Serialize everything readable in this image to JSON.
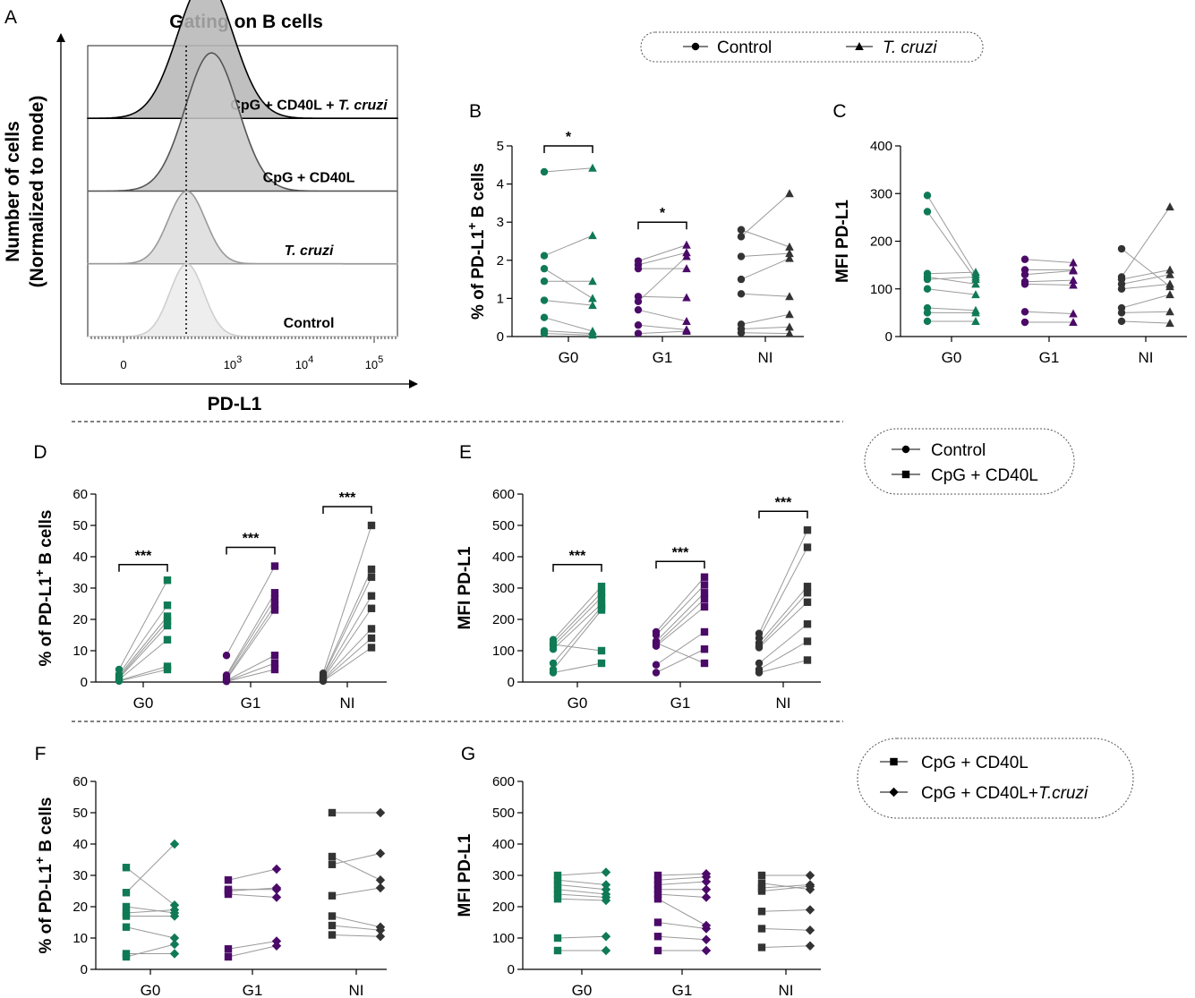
{
  "colors": {
    "G0": "#107a55",
    "G1": "#4b0a68",
    "NI": "#333333",
    "line": "#9a9a9a",
    "axis": "#000000"
  },
  "legends": {
    "top": {
      "items": [
        {
          "label": "Control",
          "marker": "circle"
        },
        {
          "label": "T. cruzi",
          "marker": "triangle",
          "italic": true
        }
      ]
    },
    "mid": {
      "items": [
        {
          "label": "Control",
          "marker": "circle"
        },
        {
          "label": "CpG + CD40L",
          "marker": "square"
        }
      ]
    },
    "bottom": {
      "items": [
        {
          "label": "CpG + CD40L",
          "marker": "square"
        },
        {
          "label": "CpG + CD40L+",
          "italic_part": "T.cruzi",
          "marker": "diamond"
        }
      ]
    }
  },
  "chart_data": [
    {
      "id": "A",
      "panel_label": "A",
      "type": "histogram",
      "title": "Gating on B cells",
      "xlabel": "PD-L1",
      "ylabel_line1": "Number of cells",
      "ylabel_line2": "(Normalized to mode)",
      "xticks": [
        {
          "base": "0"
        },
        {
          "base": "10",
          "exp": "3"
        },
        {
          "base": "10",
          "exp": "4"
        },
        {
          "base": "10",
          "exp": "5"
        }
      ],
      "tracks": [
        {
          "plain": "CpG + CD40L + ",
          "italic": "T. cruzi",
          "peak": 0.38,
          "width": 0.09
        },
        {
          "plain": "CpG + CD40L",
          "italic": "",
          "peak": 0.4,
          "width": 0.085
        },
        {
          "plain": "",
          "italic": "T. cruzi",
          "peak": 0.32,
          "width": 0.06
        },
        {
          "plain": "Control",
          "italic": "",
          "peak": 0.32,
          "width": 0.055
        }
      ]
    },
    {
      "id": "B",
      "panel_label": "B",
      "type": "paired-scatter",
      "ylabel": "% of PD-L1",
      "ylabel_sup": "+",
      "ylabel_tail": " B cells",
      "ylim": [
        0,
        5
      ],
      "yticks": [
        0,
        1,
        2,
        3,
        4,
        5
      ],
      "categories": [
        "G0",
        "G1",
        "NI"
      ],
      "markers": [
        "circle",
        "triangle"
      ],
      "pairs": {
        "G0": [
          [
            4.32,
            4.42
          ],
          [
            2.12,
            2.65
          ],
          [
            1.78,
            1.0
          ],
          [
            1.45,
            1.45
          ],
          [
            0.95,
            0.82
          ],
          [
            0.5,
            0.14
          ],
          [
            0.15,
            0.08
          ],
          [
            0.08,
            0.04
          ]
        ],
        "G1": [
          [
            1.98,
            2.4
          ],
          [
            1.88,
            2.2
          ],
          [
            1.78,
            1.78
          ],
          [
            1.05,
            1.02
          ],
          [
            0.92,
            2.1
          ],
          [
            0.7,
            0.4
          ],
          [
            0.3,
            0.18
          ],
          [
            0.08,
            0.14
          ]
        ],
        "NI": [
          [
            2.8,
            2.35
          ],
          [
            2.62,
            3.75
          ],
          [
            2.1,
            2.18
          ],
          [
            1.5,
            2.05
          ],
          [
            1.12,
            1.05
          ],
          [
            0.32,
            0.58
          ],
          [
            0.2,
            0.25
          ],
          [
            0.1,
            0.08
          ]
        ]
      },
      "significance": [
        {
          "category": "G0",
          "label": "*",
          "level": 5.0
        },
        {
          "category": "G1",
          "label": "*",
          "level": 3.0
        }
      ]
    },
    {
      "id": "C",
      "panel_label": "C",
      "type": "paired-scatter",
      "ylabel": "MFI PD-L1",
      "ylim": [
        0,
        400
      ],
      "yticks": [
        0,
        100,
        200,
        300,
        400
      ],
      "categories": [
        "G0",
        "G1",
        "NI"
      ],
      "markers": [
        "circle",
        "triangle"
      ],
      "pairs": {
        "G0": [
          [
            296,
            130
          ],
          [
            262,
            120
          ],
          [
            132,
            135
          ],
          [
            125,
            110
          ],
          [
            120,
            125
          ],
          [
            100,
            88
          ],
          [
            60,
            55
          ],
          [
            50,
            50
          ],
          [
            32,
            32
          ]
        ],
        "G1": [
          [
            162,
            155
          ],
          [
            140,
            140
          ],
          [
            130,
            138
          ],
          [
            115,
            118
          ],
          [
            110,
            108
          ],
          [
            52,
            48
          ],
          [
            30,
            30
          ]
        ],
        "NI": [
          [
            184,
            105
          ],
          [
            125,
            272
          ],
          [
            120,
            140
          ],
          [
            110,
            130
          ],
          [
            100,
            110
          ],
          [
            60,
            88
          ],
          [
            50,
            52
          ],
          [
            32,
            28
          ]
        ]
      },
      "significance": []
    },
    {
      "id": "D",
      "panel_label": "D",
      "type": "paired-scatter",
      "ylabel": "% of PD-L1",
      "ylabel_sup": "+",
      "ylabel_tail": " B cells",
      "ylim": [
        0,
        60
      ],
      "yticks": [
        0,
        10,
        20,
        30,
        40,
        50,
        60
      ],
      "categories": [
        "G0",
        "G1",
        "NI"
      ],
      "markers": [
        "circle",
        "square"
      ],
      "pairs": {
        "G0": [
          [
            4.0,
            32.5
          ],
          [
            2.5,
            24.5
          ],
          [
            2.0,
            21.0
          ],
          [
            1.5,
            19.5
          ],
          [
            1.2,
            18.0
          ],
          [
            0.8,
            13.5
          ],
          [
            0.5,
            5.0
          ],
          [
            0.3,
            4.0
          ]
        ],
        "G1": [
          [
            8.5,
            37.0
          ],
          [
            2.2,
            28.5
          ],
          [
            1.8,
            26.5
          ],
          [
            1.2,
            24.5
          ],
          [
            0.8,
            23.0
          ],
          [
            0.5,
            8.5
          ],
          [
            0.3,
            6.0
          ],
          [
            0.2,
            4.0
          ]
        ],
        "NI": [
          [
            2.8,
            50.0
          ],
          [
            2.2,
            36.0
          ],
          [
            1.8,
            33.5
          ],
          [
            1.4,
            27.5
          ],
          [
            1.0,
            23.5
          ],
          [
            0.8,
            17.0
          ],
          [
            0.5,
            14.0
          ],
          [
            0.3,
            11.0
          ]
        ]
      },
      "significance": [
        {
          "category": "G0",
          "label": "***",
          "level": 37.5
        },
        {
          "category": "G1",
          "label": "***",
          "level": 43.0
        },
        {
          "category": "NI",
          "label": "***",
          "level": 56.0
        }
      ]
    },
    {
      "id": "E",
      "panel_label": "E",
      "type": "paired-scatter",
      "ylabel": "MFI PD-L1",
      "ylim": [
        0,
        600
      ],
      "yticks": [
        0,
        100,
        200,
        300,
        400,
        500,
        600
      ],
      "categories": [
        "G0",
        "G1",
        "NI"
      ],
      "markers": [
        "circle",
        "square"
      ],
      "pairs": {
        "G0": [
          [
            135,
            305
          ],
          [
            125,
            285
          ],
          [
            115,
            270
          ],
          [
            105,
            250
          ],
          [
            60,
            240
          ],
          [
            40,
            230
          ],
          [
            120,
            100
          ],
          [
            30,
            60
          ]
        ],
        "G1": [
          [
            160,
            335
          ],
          [
            150,
            310
          ],
          [
            130,
            285
          ],
          [
            120,
            265
          ],
          [
            115,
            240
          ],
          [
            55,
            160
          ],
          [
            30,
            105
          ],
          [
            125,
            60
          ]
        ],
        "NI": [
          [
            155,
            485
          ],
          [
            140,
            430
          ],
          [
            125,
            305
          ],
          [
            115,
            285
          ],
          [
            110,
            255
          ],
          [
            60,
            185
          ],
          [
            40,
            130
          ],
          [
            30,
            70
          ]
        ]
      },
      "significance": [
        {
          "category": "G0",
          "label": "***",
          "level": 375
        },
        {
          "category": "G1",
          "label": "***",
          "level": 385
        },
        {
          "category": "NI",
          "label": "***",
          "level": 545
        }
      ]
    },
    {
      "id": "F",
      "panel_label": "F",
      "type": "paired-scatter",
      "ylabel": "% of PD-L1",
      "ylabel_sup": "+",
      "ylabel_tail": " B cells",
      "ylim": [
        0,
        60
      ],
      "yticks": [
        0,
        10,
        20,
        30,
        40,
        50,
        60
      ],
      "categories": [
        "G0",
        "G1",
        "NI"
      ],
      "markers": [
        "square",
        "diamond"
      ],
      "pairs": {
        "G0": [
          [
            32.5,
            20.5
          ],
          [
            24.5,
            40.0
          ],
          [
            20.0,
            18.0
          ],
          [
            18.0,
            19.0
          ],
          [
            17.0,
            17.0
          ],
          [
            13.5,
            10.0
          ],
          [
            5.0,
            5.0
          ],
          [
            4.0,
            8.0
          ]
        ],
        "G1": [
          [
            28.5,
            32.0
          ],
          [
            25.5,
            25.5
          ],
          [
            25.0,
            26.0
          ],
          [
            24.0,
            23.0
          ],
          [
            6.5,
            9.0
          ],
          [
            4.0,
            7.5
          ]
        ],
        "NI": [
          [
            50.0,
            50.0
          ],
          [
            36.0,
            28.5
          ],
          [
            33.5,
            37.0
          ],
          [
            23.5,
            26.0
          ],
          [
            17.0,
            13.5
          ],
          [
            14.0,
            12.5
          ],
          [
            11.0,
            10.5
          ]
        ]
      },
      "significance": []
    },
    {
      "id": "G",
      "panel_label": "G",
      "type": "paired-scatter",
      "ylabel": "MFI PD-L1",
      "ylim": [
        0,
        600
      ],
      "yticks": [
        0,
        100,
        200,
        300,
        400,
        500,
        600
      ],
      "categories": [
        "G0",
        "G1",
        "NI"
      ],
      "markers": [
        "square",
        "diamond"
      ],
      "pairs": {
        "G0": [
          [
            300,
            310
          ],
          [
            285,
            270
          ],
          [
            270,
            255
          ],
          [
            255,
            240
          ],
          [
            240,
            230
          ],
          [
            225,
            220
          ],
          [
            100,
            105
          ],
          [
            60,
            60
          ]
        ],
        "G1": [
          [
            300,
            305
          ],
          [
            285,
            295
          ],
          [
            270,
            280
          ],
          [
            255,
            255
          ],
          [
            240,
            230
          ],
          [
            225,
            140
          ],
          [
            150,
            130
          ],
          [
            105,
            95
          ],
          [
            60,
            60
          ]
        ],
        "NI": [
          [
            300,
            300
          ],
          [
            275,
            255
          ],
          [
            260,
            270
          ],
          [
            250,
            265
          ],
          [
            185,
            190
          ],
          [
            130,
            125
          ],
          [
            70,
            75
          ]
        ]
      },
      "significance": []
    }
  ]
}
